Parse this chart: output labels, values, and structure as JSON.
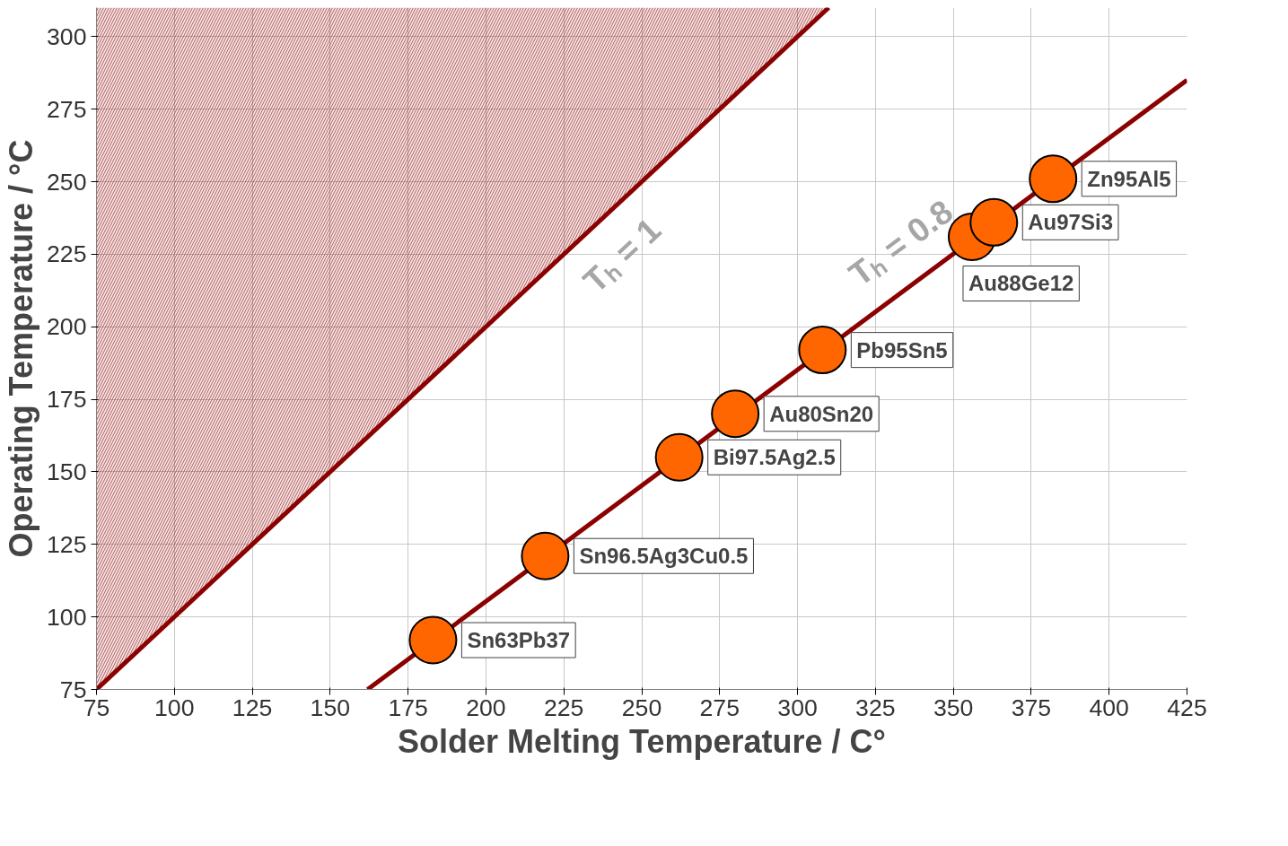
{
  "chart_data": {
    "type": "scatter",
    "xlabel": "Solder Melting Temperature / C°",
    "ylabel": "Operating Temperature / °C",
    "xlim": [
      75,
      425
    ],
    "ylim": [
      75,
      310
    ],
    "xticks": [
      75,
      100,
      125,
      150,
      175,
      200,
      225,
      250,
      275,
      300,
      325,
      350,
      375,
      400,
      425
    ],
    "yticks": [
      75,
      100,
      125,
      150,
      175,
      200,
      225,
      250,
      275,
      300
    ],
    "grid": true,
    "legend": false,
    "series": [
      {
        "name": "Tₕ = 1",
        "type": "line",
        "color": "#8b0000",
        "x": [
          75,
          310
        ],
        "values": [
          75,
          310
        ],
        "lower": [
          75,
          310
        ],
        "upper": [
          310,
          310
        ]
      },
      {
        "name": "Tₕ = 0.8",
        "type": "line",
        "color": "#8b0000",
        "x": [
          162,
          425
        ],
        "values": [
          75,
          285
        ]
      },
      {
        "marker": "circle",
        "color": "#ff6600",
        "x": [
          183,
          219,
          262,
          280,
          308,
          356,
          363,
          382
        ],
        "values": [
          92,
          121,
          155,
          170,
          192,
          231,
          236,
          251
        ]
      }
    ],
    "annotations": [
      {
        "text": "Sn63Pb37",
        "x": 183,
        "y": 92
      },
      {
        "text": "Sn96.5Ag3Cu0.5",
        "x": 219,
        "y": 121
      },
      {
        "text": "Bi97.5Ag2.5",
        "x": 262,
        "y": 155
      },
      {
        "text": "Au80Sn20",
        "x": 280,
        "y": 170
      },
      {
        "text": "Pb95Sn5",
        "x": 308,
        "y": 192
      },
      {
        "text": "Au88Ge12",
        "x": 356,
        "y": 231
      },
      {
        "text": "Au97Si3",
        "x": 363,
        "y": 236
      },
      {
        "text": "Zn95Al5",
        "x": 382,
        "y": 251
      }
    ]
  }
}
